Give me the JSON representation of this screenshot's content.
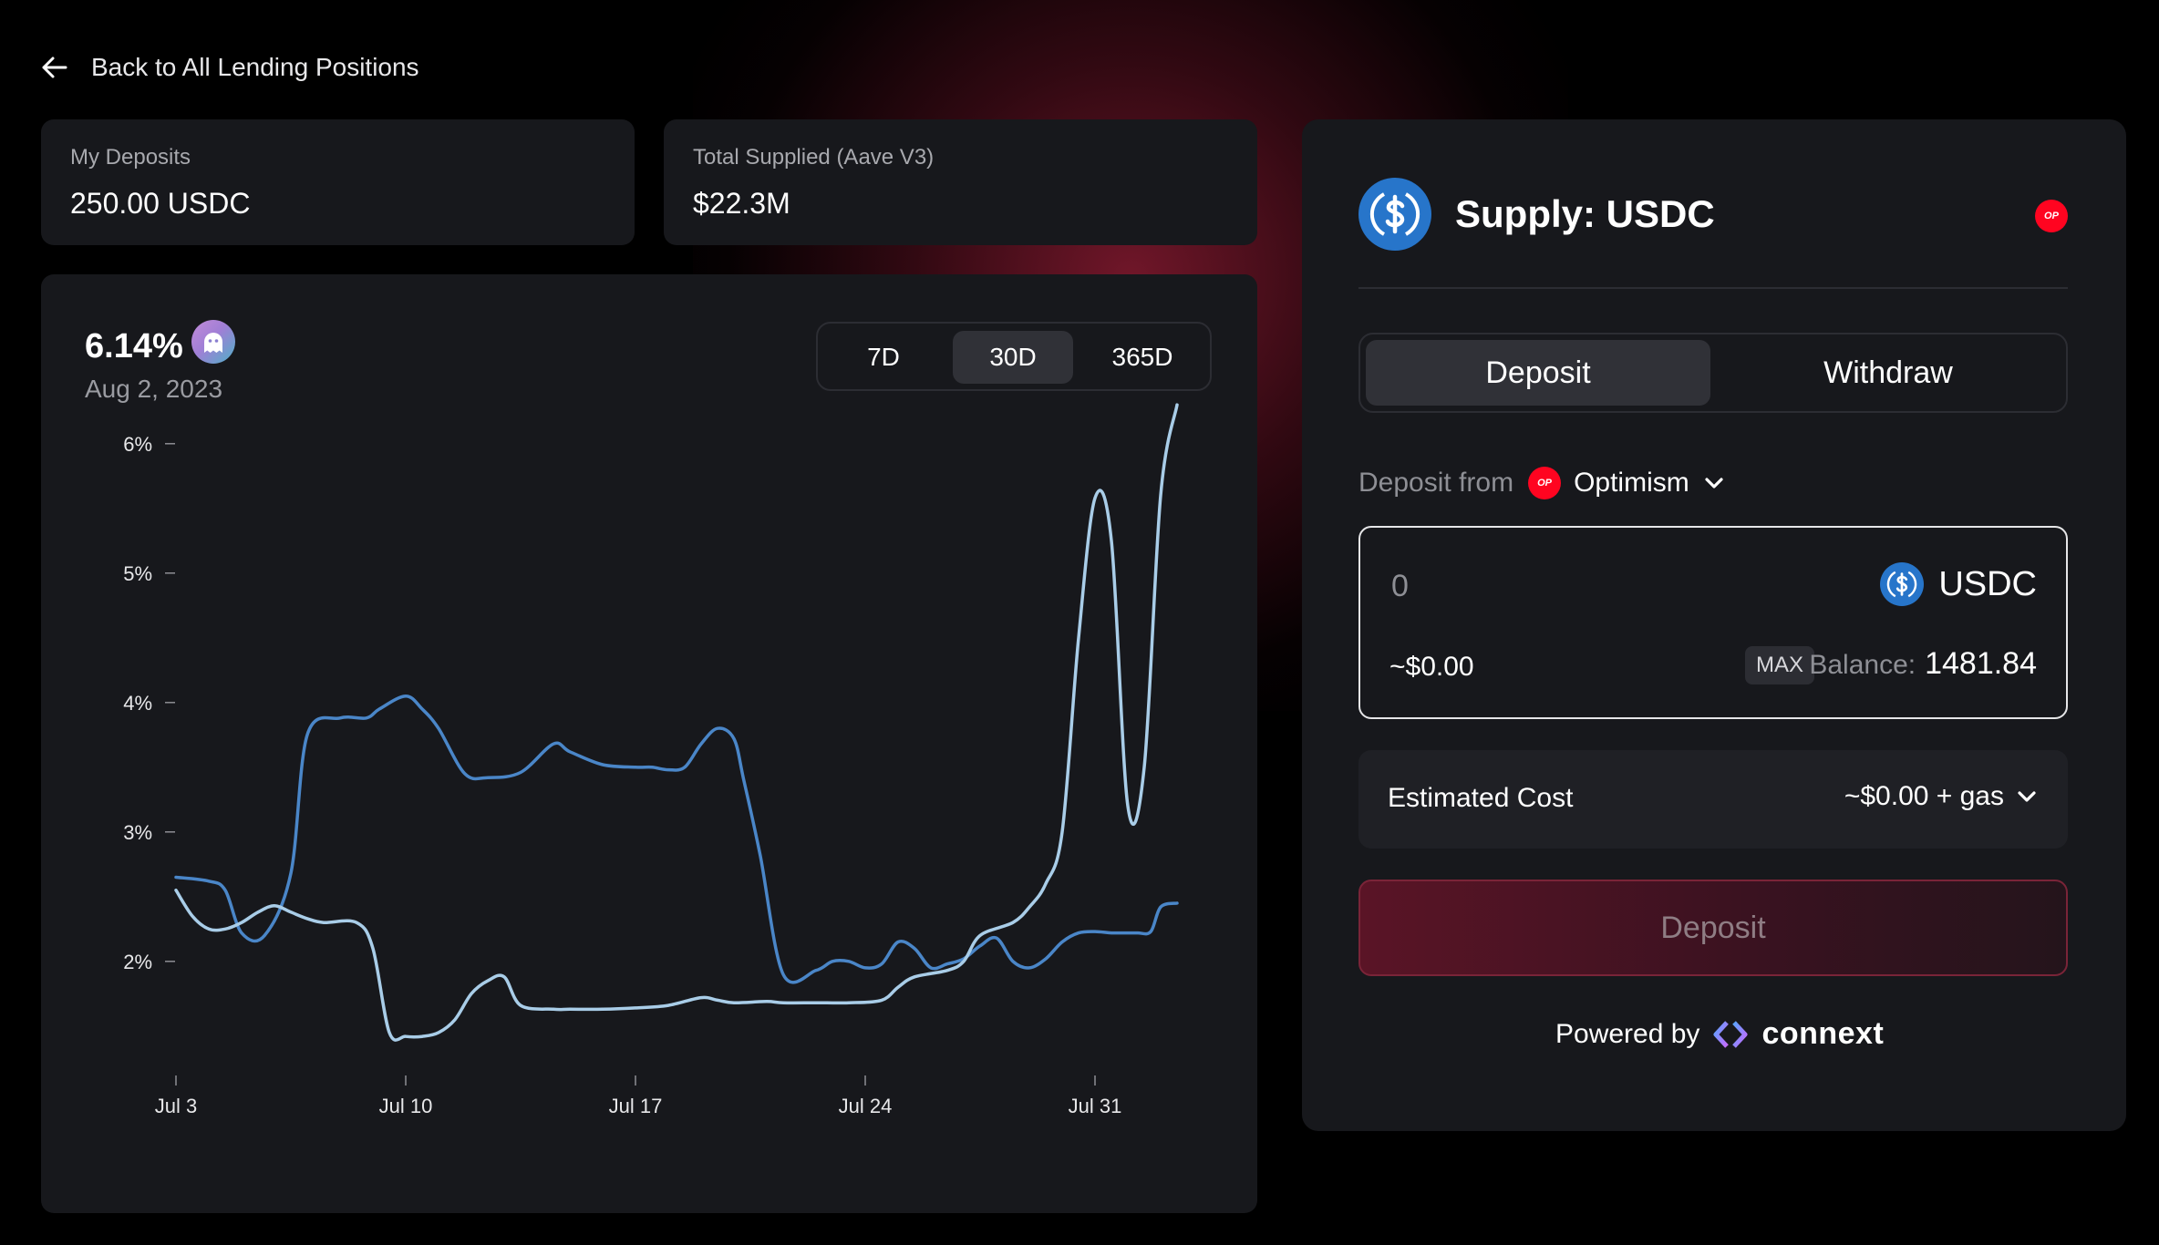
{
  "nav": {
    "back_label": "Back to All Lending Positions"
  },
  "stats": {
    "my_deposits": {
      "label": "My Deposits",
      "value": "250.00 USDC"
    },
    "total_supplied": {
      "label": "Total Supplied (Aave V3)",
      "value": "$22.3M"
    }
  },
  "rate": {
    "value": "6.14%",
    "date": "Aug 2, 2023"
  },
  "range": {
    "options": [
      "7D",
      "30D",
      "365D"
    ],
    "selected": "30D"
  },
  "chart_data": {
    "type": "line",
    "x_ticks": [
      "Jul 3",
      "Jul 10",
      "Jul 17",
      "Jul 24",
      "Jul 31"
    ],
    "y_ticks": [
      "6%",
      "5%",
      "4%",
      "3%",
      "2%"
    ],
    "ylim": [
      1.4,
      6.4
    ],
    "xlim": [
      0,
      30.5
    ],
    "grid": false,
    "series": [
      {
        "color": "#4a86c8",
        "x": [
          0,
          1,
          1.5,
          2,
          2.7,
          3.5,
          4,
          5,
          5.8,
          6.2,
          7,
          7.5,
          8,
          8.8,
          9.5,
          10.5,
          11.5,
          12,
          13,
          14,
          14.5,
          15,
          15.5,
          16,
          16.5,
          17,
          17.3,
          17.8,
          18.5,
          19.5,
          20,
          20.5,
          21,
          21.5,
          22,
          22.5,
          23,
          23.5,
          24,
          24.5,
          25,
          25.5,
          26,
          26.5,
          27,
          27.5,
          28,
          28.5,
          29,
          29.3,
          29.7,
          30,
          30.5
        ],
        "y": [
          2.65,
          2.62,
          2.55,
          2.22,
          2.2,
          2.68,
          3.75,
          3.88,
          3.88,
          3.95,
          4.05,
          3.95,
          3.8,
          3.45,
          3.42,
          3.46,
          3.68,
          3.62,
          3.52,
          3.5,
          3.5,
          3.48,
          3.5,
          3.68,
          3.8,
          3.72,
          3.4,
          2.82,
          1.9,
          1.93,
          2.0,
          2.0,
          1.95,
          1.98,
          2.15,
          2.1,
          1.95,
          1.98,
          2.02,
          2.12,
          2.18,
          2.0,
          1.95,
          2.02,
          2.15,
          2.22,
          2.23,
          2.22,
          2.22,
          2.22,
          2.23,
          2.42,
          2.45
        ]
      },
      {
        "color": "#a9cde8",
        "x": [
          0,
          0.5,
          1,
          1.5,
          2,
          2.5,
          3,
          3.5,
          4,
          4.5,
          5.5,
          6,
          6.5,
          7,
          7.5,
          8,
          8.5,
          9,
          9.5,
          10,
          10.5,
          11.5,
          12,
          13,
          14,
          15,
          16,
          16.5,
          17,
          18,
          18.5,
          19.5,
          20.5,
          21.5,
          22,
          22.5,
          23.5,
          24,
          24.5,
          25.5,
          26,
          26.5,
          27,
          27.5,
          28,
          28.5,
          29,
          29.5,
          30,
          30.5
        ],
        "y": [
          2.55,
          2.35,
          2.25,
          2.25,
          2.3,
          2.38,
          2.43,
          2.38,
          2.33,
          2.3,
          2.3,
          2.1,
          1.45,
          1.42,
          1.42,
          1.45,
          1.55,
          1.75,
          1.85,
          1.88,
          1.66,
          1.63,
          1.63,
          1.63,
          1.64,
          1.66,
          1.72,
          1.7,
          1.68,
          1.69,
          1.68,
          1.68,
          1.68,
          1.7,
          1.8,
          1.88,
          1.93,
          2.0,
          2.2,
          2.3,
          2.42,
          2.6,
          3.0,
          4.5,
          5.58,
          5.25,
          3.2,
          3.5,
          5.6,
          6.3
        ]
      }
    ]
  },
  "supply_panel": {
    "title": "Supply: USDC",
    "chain_badge": "OP",
    "tabs": [
      "Deposit",
      "Withdraw"
    ],
    "active_tab": "Deposit",
    "deposit_from_label": "Deposit from",
    "chain_name": "Optimism",
    "amount_placeholder": "0",
    "token": "USDC",
    "usd_value": "~$0.00",
    "max_label": "MAX",
    "balance_label": "Balance:",
    "balance_value": "1481.84",
    "estimated_cost_label": "Estimated Cost",
    "estimated_cost_value": "~$0.00 + gas",
    "submit_label": "Deposit",
    "powered_by_label": "Powered by",
    "powered_by_brand": "connext"
  },
  "colors": {
    "background": "#000000",
    "card": "#17181c",
    "accent": "#7a2438",
    "series_a": "#4a86c8",
    "series_b": "#a9cde8",
    "op_red": "#ff0420",
    "usdc_blue": "#2775ca"
  }
}
